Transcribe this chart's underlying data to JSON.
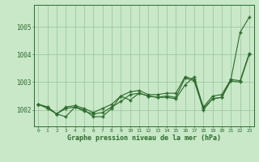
{
  "x": [
    0,
    1,
    2,
    3,
    4,
    5,
    6,
    7,
    8,
    9,
    10,
    11,
    12,
    13,
    14,
    15,
    16,
    17,
    18,
    19,
    20,
    21,
    22,
    23
  ],
  "line1": [
    1002.2,
    1002.1,
    1001.85,
    1001.75,
    1002.1,
    1002.0,
    1001.75,
    1001.75,
    1002.05,
    1002.5,
    1002.35,
    1002.6,
    1002.5,
    1002.45,
    1002.45,
    1002.4,
    1002.9,
    1003.2,
    1002.05,
    1002.4,
    1002.45,
    1003.1,
    1004.8,
    1005.35
  ],
  "line2": [
    1002.2,
    1002.05,
    1001.85,
    1002.05,
    1002.1,
    1001.95,
    1001.85,
    1001.9,
    1002.1,
    1002.3,
    1002.55,
    1002.6,
    1002.5,
    1002.45,
    1002.5,
    1002.45,
    1003.15,
    1003.05,
    1002.0,
    1002.4,
    1002.45,
    1003.05,
    1003.0,
    1004.0
  ],
  "line3": [
    1002.2,
    1002.1,
    1001.85,
    1002.1,
    1002.15,
    1002.05,
    1001.9,
    1002.05,
    1002.2,
    1002.5,
    1002.65,
    1002.7,
    1002.55,
    1002.55,
    1002.6,
    1002.6,
    1003.2,
    1003.1,
    1002.1,
    1002.5,
    1002.55,
    1003.1,
    1003.05,
    1004.05
  ],
  "line_color": "#2d6a2d",
  "bg_color": "#c8e8c8",
  "grid_color": "#a0c8a0",
  "title": "Graphe pression niveau de la mer (hPa)",
  "ylim_min": 1001.4,
  "ylim_max": 1005.8,
  "yticks": [
    1002,
    1003,
    1004,
    1005
  ],
  "xlim_min": -0.5,
  "xlim_max": 23.5
}
